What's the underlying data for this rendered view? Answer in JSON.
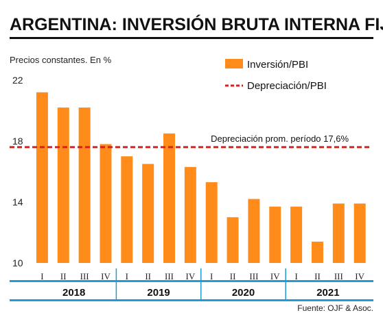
{
  "chart_data": {
    "type": "bar",
    "title": "ARGENTINA: INVERSIÓN BRUTA INTERNA FIJA",
    "subtitle": "Precios constantes. En %",
    "source": "Fuente: OJF & Asoc.",
    "categories": [
      "I",
      "II",
      "III",
      "IV",
      "I",
      "II",
      "III",
      "IV",
      "I",
      "II",
      "III",
      "IV",
      "I",
      "II",
      "III",
      "IV"
    ],
    "year_groups": [
      {
        "label": "2018",
        "count": 4
      },
      {
        "label": "2019",
        "count": 4
      },
      {
        "label": "2020",
        "count": 4
      },
      {
        "label": "2021",
        "count": 4
      }
    ],
    "series": [
      {
        "name": "Inversión/PBI",
        "color": "#ff8c1a",
        "values": [
          21.2,
          20.2,
          20.2,
          17.8,
          17.0,
          16.5,
          18.5,
          16.3,
          15.3,
          13.0,
          14.2,
          13.7,
          13.7,
          11.4,
          13.9,
          13.9
        ]
      }
    ],
    "reference_line": {
      "name": "Depreciación/PBI",
      "value": 17.6,
      "color": "#d62020",
      "style": "dashed",
      "annotation": "Depreciación prom. período 17,6%"
    },
    "yticks": [
      10,
      14,
      18,
      22
    ],
    "ylim": [
      10,
      22.5
    ],
    "legend_position": "top-right"
  }
}
